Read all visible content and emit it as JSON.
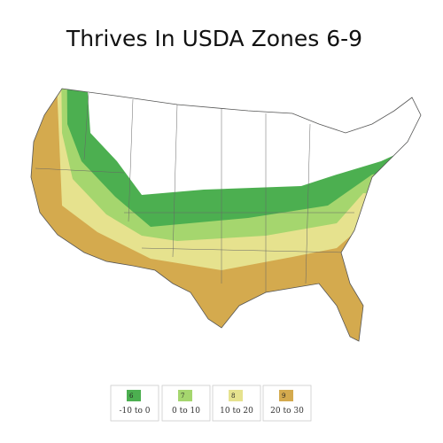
{
  "title": "Thrives In USDA Zones 6-9",
  "legend": [
    {
      "zone": "6",
      "range": "-10 to 0",
      "color": "#4caf50"
    },
    {
      "zone": "7",
      "range": "0 to 10",
      "color": "#a5d66e"
    },
    {
      "zone": "8",
      "range": "10 to 20",
      "color": "#e6e28e"
    },
    {
      "zone": "9",
      "range": "20 to 30",
      "color": "#d4aa4e"
    }
  ]
}
